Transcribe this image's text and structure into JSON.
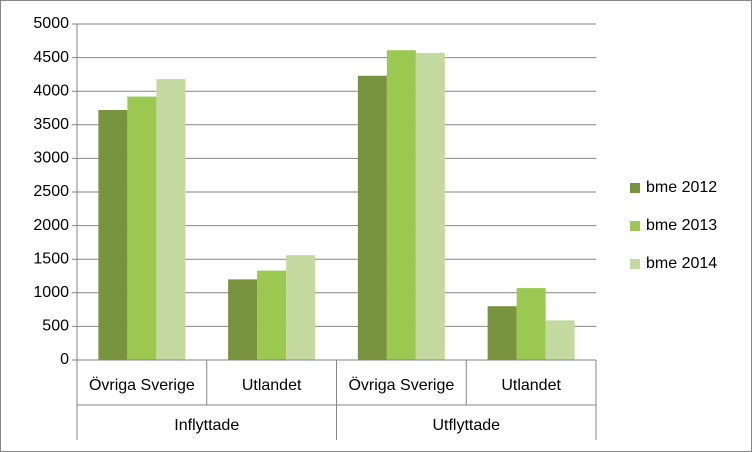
{
  "chart_data": {
    "type": "bar",
    "groups": [
      {
        "name": "Inflyttade",
        "categories": [
          "Övriga Sverige",
          "Utlandet"
        ]
      },
      {
        "name": "Utflyttade",
        "categories": [
          "Övriga Sverige",
          "Utlandet"
        ]
      }
    ],
    "series": [
      {
        "name": "bme 2012",
        "color": "#77933c",
        "values": [
          3720,
          1200,
          4230,
          800
        ]
      },
      {
        "name": "bme 2013",
        "color": "#9bc850",
        "values": [
          3920,
          1330,
          4610,
          1070
        ]
      },
      {
        "name": "bme 2014",
        "color": "#c4d9a0",
        "values": [
          4180,
          1560,
          4570,
          590
        ]
      }
    ],
    "ylim": [
      0,
      5000
    ],
    "yticks": [
      0,
      500,
      1000,
      1500,
      2000,
      2500,
      3000,
      3500,
      4000,
      4500,
      5000
    ],
    "grid": true,
    "legend": "right"
  }
}
